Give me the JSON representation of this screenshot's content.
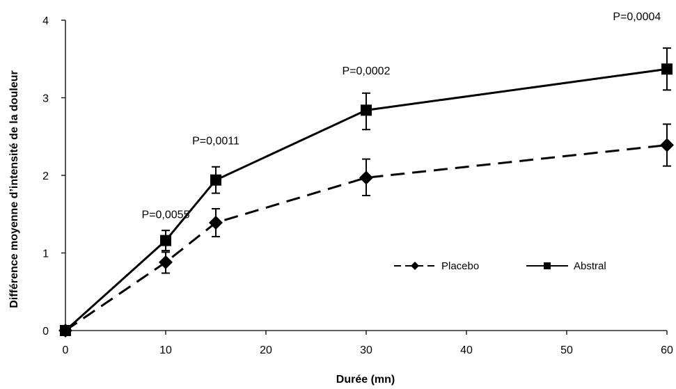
{
  "chart_data": {
    "type": "line",
    "title": "",
    "xlabel": "Durée (mn)",
    "ylabel": "Différence moyenne d’intensité de la douleur",
    "xlim": [
      0,
      60
    ],
    "ylim": [
      0,
      4
    ],
    "x_ticks": [
      0,
      10,
      20,
      30,
      40,
      50,
      60
    ],
    "y_ticks": [
      0,
      1,
      2,
      3,
      4
    ],
    "grid": false,
    "legend_position": "lower-right",
    "series": [
      {
        "name": "Placebo",
        "marker": "diamond",
        "line_style": "dashed",
        "color": "#000000",
        "x": [
          0,
          10,
          15,
          30,
          60
        ],
        "y": [
          0,
          0.88,
          1.39,
          1.97,
          2.39
        ],
        "error_low": [
          0,
          0.74,
          1.21,
          1.74,
          2.12
        ],
        "error_high": [
          0,
          1.01,
          1.57,
          2.21,
          2.66
        ]
      },
      {
        "name": "Abstral",
        "marker": "square",
        "line_style": "solid",
        "color": "#000000",
        "x": [
          0,
          10,
          15,
          30,
          60
        ],
        "y": [
          0,
          1.16,
          1.94,
          2.84,
          3.37
        ],
        "error_low": [
          0,
          1.03,
          1.77,
          2.59,
          3.1
        ],
        "error_high": [
          0,
          1.29,
          2.11,
          3.06,
          3.64
        ]
      }
    ],
    "annotations": [
      {
        "text": "P=0,0055",
        "x": 10,
        "y": 1.45
      },
      {
        "text": "P=0,0011",
        "x": 15,
        "y": 2.4
      },
      {
        "text": "P=0,0002",
        "x": 30,
        "y": 3.3
      },
      {
        "text": "P=0,0004",
        "x": 57,
        "y": 4.0
      }
    ]
  }
}
